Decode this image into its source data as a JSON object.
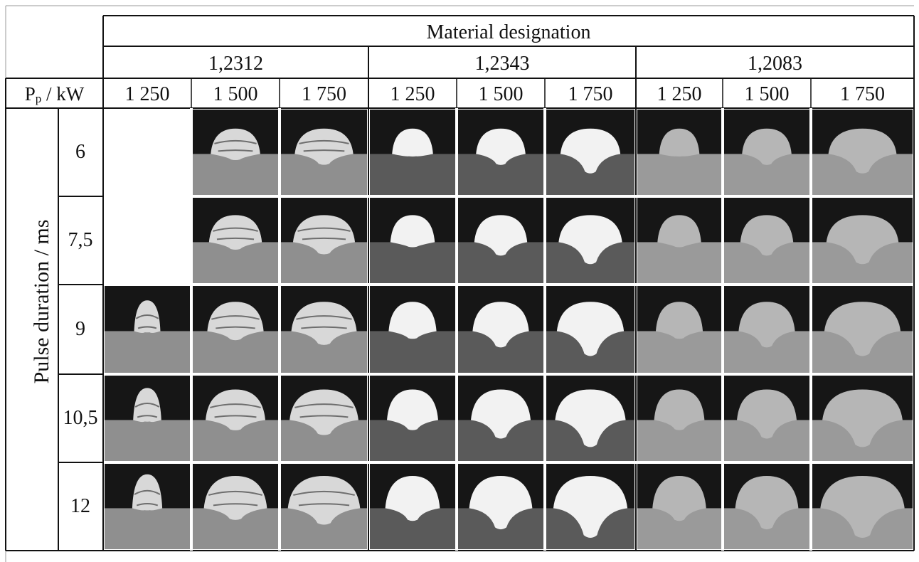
{
  "table": {
    "header_title": "Material designation",
    "power_symbol": "P",
    "power_subscript": "p",
    "power_unit": " / kW",
    "row_axis_label": "Pulse duration / ms",
    "materials": [
      {
        "name": "1,2312",
        "powers": [
          "1 250",
          "1 500",
          "1 750"
        ]
      },
      {
        "name": "1,2343",
        "powers": [
          "1 250",
          "1 500",
          "1 750"
        ]
      },
      {
        "name": "1,2083",
        "powers": [
          "1 250",
          "1 500",
          "1 750"
        ]
      }
    ],
    "pulse_durations": [
      "6",
      "7,5",
      "9",
      "10,5",
      "12"
    ],
    "samples": [
      [
        false,
        true,
        true,
        true,
        true,
        true,
        true,
        true,
        true
      ],
      [
        false,
        true,
        true,
        true,
        true,
        true,
        true,
        true,
        true
      ],
      [
        true,
        true,
        true,
        true,
        true,
        true,
        true,
        true,
        true
      ],
      [
        true,
        true,
        true,
        true,
        true,
        true,
        true,
        true,
        true
      ],
      [
        true,
        true,
        true,
        true,
        true,
        true,
        true,
        true,
        true
      ]
    ]
  },
  "colors": {
    "line": "#111111",
    "background_top": "#161616",
    "substrate_1_2312": "#8f8f8f",
    "substrate_1_2343": "#5a5a5a",
    "substrate_1_2083": "#9a9a9a",
    "bead_1_2312": "#d8d8d8",
    "bead_1_2343": "#f2f2f2",
    "bead_1_2083": "#b6b6b6"
  }
}
